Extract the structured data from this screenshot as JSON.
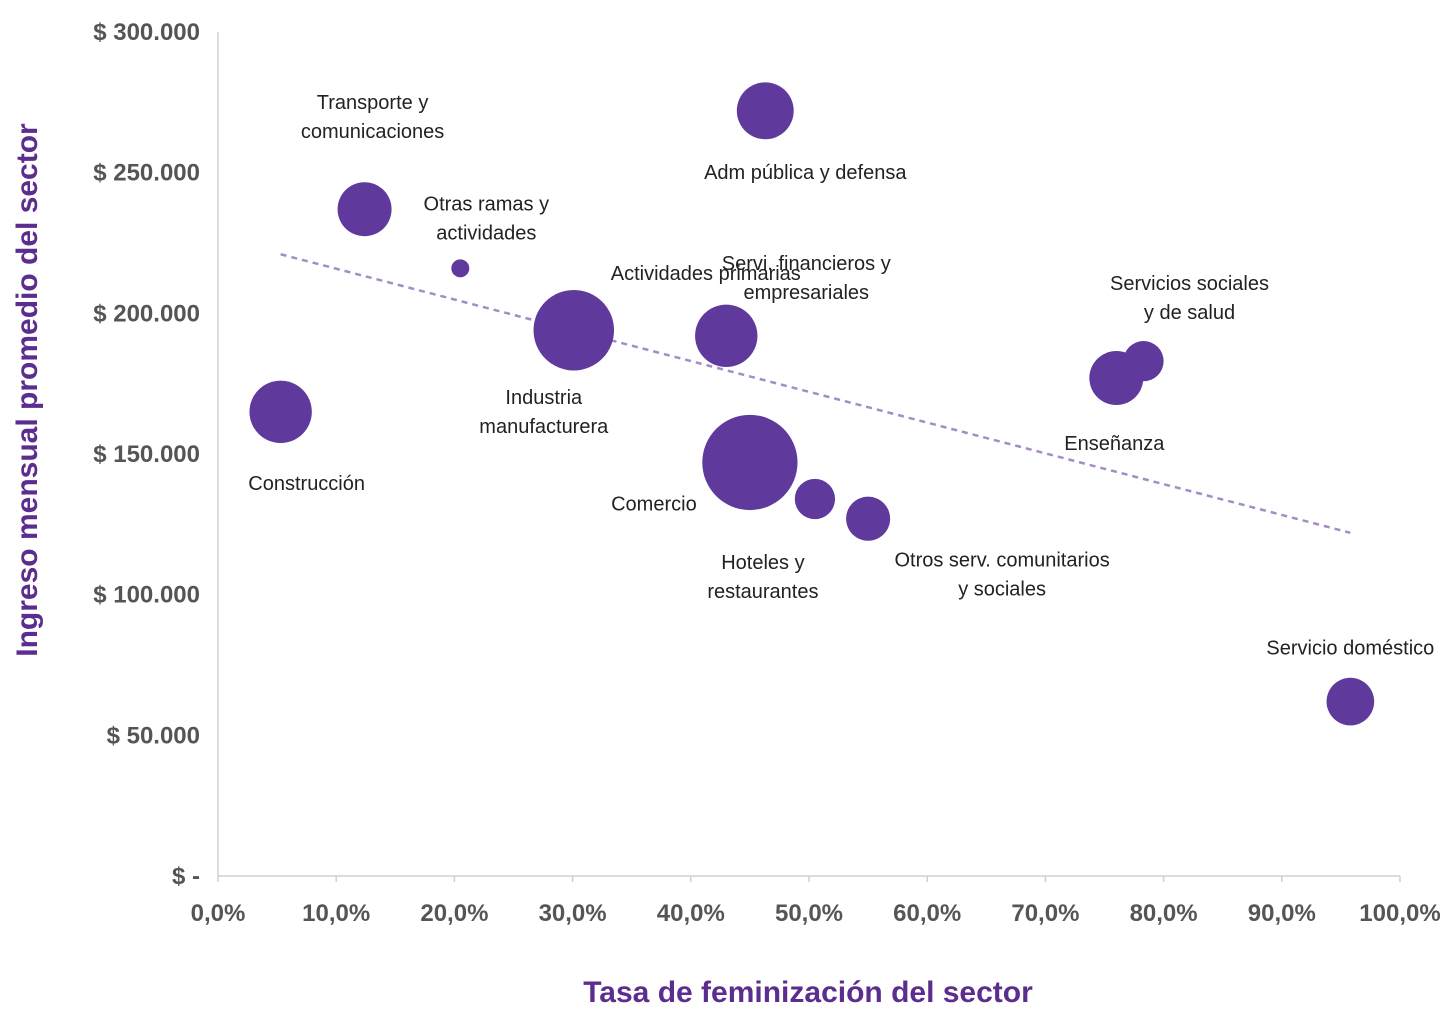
{
  "colors": {
    "bubble": "#5f3a9c",
    "trend": "#a48cc8",
    "axis": "#d0d0d0",
    "title": "#5b2d8e"
  },
  "chart_data": {
    "type": "scatter",
    "variant": "bubble",
    "title": "",
    "xlabel": "Tasa de feminización del sector",
    "ylabel": "Ingreso mensual promedio del sector",
    "xlim": [
      0,
      100
    ],
    "ylim": [
      0,
      300000
    ],
    "grid": false,
    "legend": "none",
    "xticks": [
      {
        "value": 0,
        "label": "0,0%"
      },
      {
        "value": 10,
        "label": "10,0%"
      },
      {
        "value": 20,
        "label": "20,0%"
      },
      {
        "value": 30,
        "label": "30,0%"
      },
      {
        "value": 40,
        "label": "40,0%"
      },
      {
        "value": 50,
        "label": "50,0%"
      },
      {
        "value": 60,
        "label": "60,0%"
      },
      {
        "value": 70,
        "label": "70,0%"
      },
      {
        "value": 80,
        "label": "80,0%"
      },
      {
        "value": 90,
        "label": "90,0%"
      },
      {
        "value": 100,
        "label": "100,0%"
      }
    ],
    "yticks": [
      {
        "value": 0,
        "label": "$ -"
      },
      {
        "value": 50000,
        "label": "$ 50.000"
      },
      {
        "value": 100000,
        "label": "$ 100.000"
      },
      {
        "value": 150000,
        "label": "$ 150.000"
      },
      {
        "value": 200000,
        "label": "$ 200.000"
      },
      {
        "value": 250000,
        "label": "$ 250.000"
      },
      {
        "value": 300000,
        "label": "$ 300.000"
      }
    ],
    "points": [
      {
        "label": [
          "Transporte y",
          "comunicaciones"
        ],
        "x": 12.4,
        "y": 237000,
        "size": 9
      },
      {
        "label": [
          "Otras ramas y",
          "actividades"
        ],
        "x": 20.5,
        "y": 216000,
        "size": 1
      },
      {
        "label": [
          "Adm pública y defensa"
        ],
        "x": 46.3,
        "y": 272000,
        "size": 10
      },
      {
        "label": [
          "Actividades primarias"
        ],
        "x": 30.1,
        "y": 194000,
        "size": 20
      },
      {
        "label": [
          "Industria",
          "manufacturera"
        ],
        "x": 30.1,
        "y": 194000,
        "size": 20
      },
      {
        "label": [
          "Servi. financieros y",
          "empresariales"
        ],
        "x": 43.0,
        "y": 192000,
        "size": 12
      },
      {
        "label": [
          "Construcción"
        ],
        "x": 5.3,
        "y": 165000,
        "size": 12
      },
      {
        "label": [
          "Comercio"
        ],
        "x": 45.0,
        "y": 147000,
        "size": 28
      },
      {
        "label": [
          "Hoteles y",
          "restaurantes"
        ],
        "x": 50.5,
        "y": 134000,
        "size": 5
      },
      {
        "label": [
          "Otros serv. comunitarios",
          "y sociales"
        ],
        "x": 55.0,
        "y": 127000,
        "size": 6
      },
      {
        "label": [
          "Servicios sociales",
          "y de salud"
        ],
        "x": 78.3,
        "y": 183000,
        "size": 5
      },
      {
        "label": [
          "Enseñanza"
        ],
        "x": 76.0,
        "y": 177000,
        "size": 9
      },
      {
        "label": [
          "Servicio doméstico"
        ],
        "x": 95.8,
        "y": 62000,
        "size": 7
      }
    ],
    "trendline": {
      "style": "dashed",
      "x": [
        5.3,
        95.8
      ],
      "y": [
        221000,
        122000
      ]
    }
  }
}
